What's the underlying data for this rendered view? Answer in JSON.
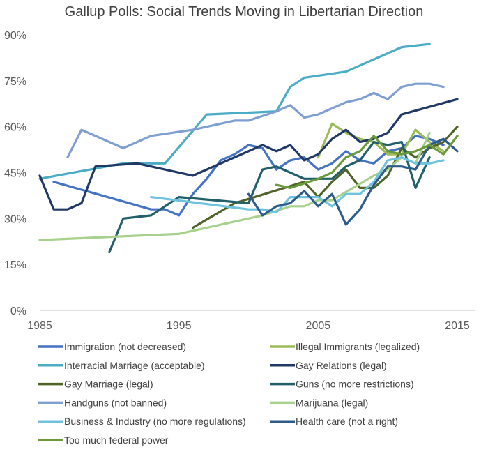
{
  "chart_data": {
    "type": "line",
    "title": "Gallup Polls: Social Trends Moving in Libertarian Direction",
    "xlabel": "",
    "ylabel": "",
    "xlim": [
      1985,
      2016
    ],
    "ylim": [
      0,
      90
    ],
    "x_ticks": [
      1985,
      1995,
      2005,
      2015
    ],
    "y_ticks": [
      0,
      15,
      30,
      45,
      60,
      75,
      90
    ],
    "y_tick_labels": [
      "0%",
      "15%",
      "30%",
      "45%",
      "60%",
      "75%",
      "90%"
    ],
    "grid": false,
    "legend_position": "bottom",
    "series": [
      {
        "name": "Immigration (not decreased)",
        "color": "#4472C4",
        "x": [
          1986,
          1993,
          1994,
          1995,
          1996,
          1997,
          1998,
          1999,
          2000,
          2001,
          2002,
          2003,
          2004,
          2005,
          2006,
          2007,
          2008,
          2009,
          2010,
          2011,
          2012,
          2013,
          2014
        ],
        "y": [
          42,
          33,
          33,
          31,
          38,
          43,
          49,
          51,
          54,
          53,
          46,
          49,
          50,
          46,
          48,
          52,
          49,
          48,
          52,
          53,
          57,
          56,
          54
        ]
      },
      {
        "name": "Illegal Immigrants (legalized)",
        "color": "#9BBB59",
        "x": [
          2005,
          2006,
          2007,
          2008,
          2009,
          2010,
          2011,
          2012,
          2013,
          2014
        ],
        "y": [
          50,
          61,
          58,
          56,
          55,
          51,
          51,
          59,
          55,
          52
        ]
      },
      {
        "name": "Interracial Marriage (acceptable)",
        "color": "#4BACC6",
        "x": [
          1985,
          1991,
          1994,
          1997,
          2002,
          2003,
          2004,
          2007,
          2011,
          2013
        ],
        "y": [
          43,
          48,
          48,
          64,
          65,
          73,
          76,
          78,
          86,
          87
        ]
      },
      {
        "name": "Gay Relations (legal)",
        "color": "#1F3864",
        "x": [
          1985,
          1986,
          1987,
          1988,
          1989,
          1992,
          1996,
          2001,
          2002,
          2003,
          2004,
          2005,
          2006,
          2007,
          2008,
          2009,
          2010,
          2011,
          2015
        ],
        "y": [
          44,
          33,
          33,
          35,
          47,
          48,
          44,
          54,
          52,
          54,
          49,
          51,
          56,
          59,
          55,
          56,
          58,
          64,
          69
        ]
      },
      {
        "name": "Gay Marriage (legal)",
        "color": "#4F6228",
        "x": [
          1996,
          1999,
          2004,
          2005,
          2006,
          2007,
          2008,
          2009,
          2010,
          2011,
          2012,
          2013,
          2014,
          2015
        ],
        "y": [
          27,
          35,
          42,
          37,
          42,
          46,
          40,
          40,
          44,
          53,
          50,
          53,
          55,
          60
        ]
      },
      {
        "name": "Guns (no more restrictions)",
        "color": "#215F6A",
        "x": [
          1990,
          1991,
          1993,
          1995,
          2000,
          2001,
          2002,
          2004,
          2005,
          2006,
          2007,
          2008,
          2009,
          2010,
          2011,
          2012,
          2013
        ],
        "y": [
          19,
          30,
          31,
          37,
          35,
          46,
          47,
          43,
          43,
          43,
          47,
          49,
          55,
          54,
          55,
          40,
          50
        ]
      },
      {
        "name": "Handguns (not banned)",
        "color": "#7F9FD1",
        "x": [
          1987,
          1988,
          1991,
          1993,
          1996,
          1999,
          2000,
          2002,
          2003,
          2004,
          2005,
          2006,
          2007,
          2008,
          2009,
          2010,
          2011,
          2012,
          2013,
          2014
        ],
        "y": [
          50,
          59,
          53,
          57,
          59,
          62,
          62,
          65,
          67,
          63,
          64,
          66,
          68,
          69,
          71,
          69,
          73,
          74,
          74,
          73
        ]
      },
      {
        "name": "Marijuana (legal)",
        "color": "#A9D18E",
        "x": [
          1985,
          1995,
          2001,
          2003,
          2004,
          2005,
          2006,
          2009,
          2010,
          2011,
          2012,
          2013
        ],
        "y": [
          23,
          25,
          31,
          34,
          34,
          36,
          36,
          44,
          46,
          50,
          48,
          58
        ]
      },
      {
        "name": "Business & Industry (no more regulations)",
        "color": "#6FC3DE",
        "x": [
          1993,
          2000,
          2001,
          2002,
          2003,
          2004,
          2005,
          2006,
          2007,
          2008,
          2009,
          2010,
          2011,
          2012,
          2013,
          2014
        ],
        "y": [
          37,
          33,
          33,
          32,
          37,
          37,
          37,
          34,
          38,
          38,
          42,
          49,
          50,
          48,
          48,
          49
        ]
      },
      {
        "name": "Health care (not a right)",
        "color": "#2E5C8A",
        "x": [
          2000,
          2001,
          2002,
          2003,
          2004,
          2005,
          2006,
          2007,
          2008,
          2009,
          2010,
          2011,
          2012,
          2013,
          2014,
          2015
        ],
        "y": [
          38,
          31,
          34,
          35,
          39,
          34,
          38,
          28,
          33,
          41,
          47,
          47,
          46,
          54,
          56,
          52
        ]
      },
      {
        "name": "Too much federal power",
        "color": "#6B9A3A",
        "x": [
          2002,
          2003,
          2005,
          2006,
          2007,
          2008,
          2009,
          2010,
          2011,
          2012,
          2013,
          2014,
          2015
        ],
        "y": [
          41,
          40,
          43,
          45,
          50,
          52,
          57,
          52,
          51,
          52,
          54,
          51,
          57
        ]
      }
    ]
  }
}
